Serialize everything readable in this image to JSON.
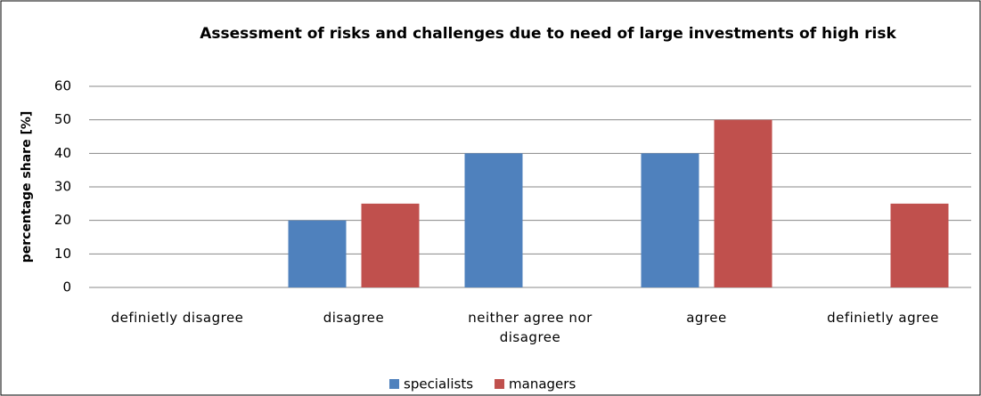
{
  "chart_data": {
    "type": "bar",
    "title": "Assessment of risks and challenges due to need of large investments  of high risk",
    "y_label": "percentage share [%]",
    "categories": [
      "definietly disagree",
      "disagree",
      "neither agree nor disagree",
      "agree",
      "definietly agree"
    ],
    "series": [
      {
        "name": "specialists",
        "color": "#4f81bd",
        "values": [
          0,
          20,
          40,
          40,
          0
        ]
      },
      {
        "name": "managers",
        "color": "#c0504d",
        "values": [
          0,
          25,
          0,
          50,
          25
        ]
      }
    ],
    "ylim": [
      0,
      60
    ],
    "yticks": [
      0,
      10,
      20,
      30,
      40,
      50,
      60
    ],
    "grid": true,
    "legend": "bottom"
  }
}
